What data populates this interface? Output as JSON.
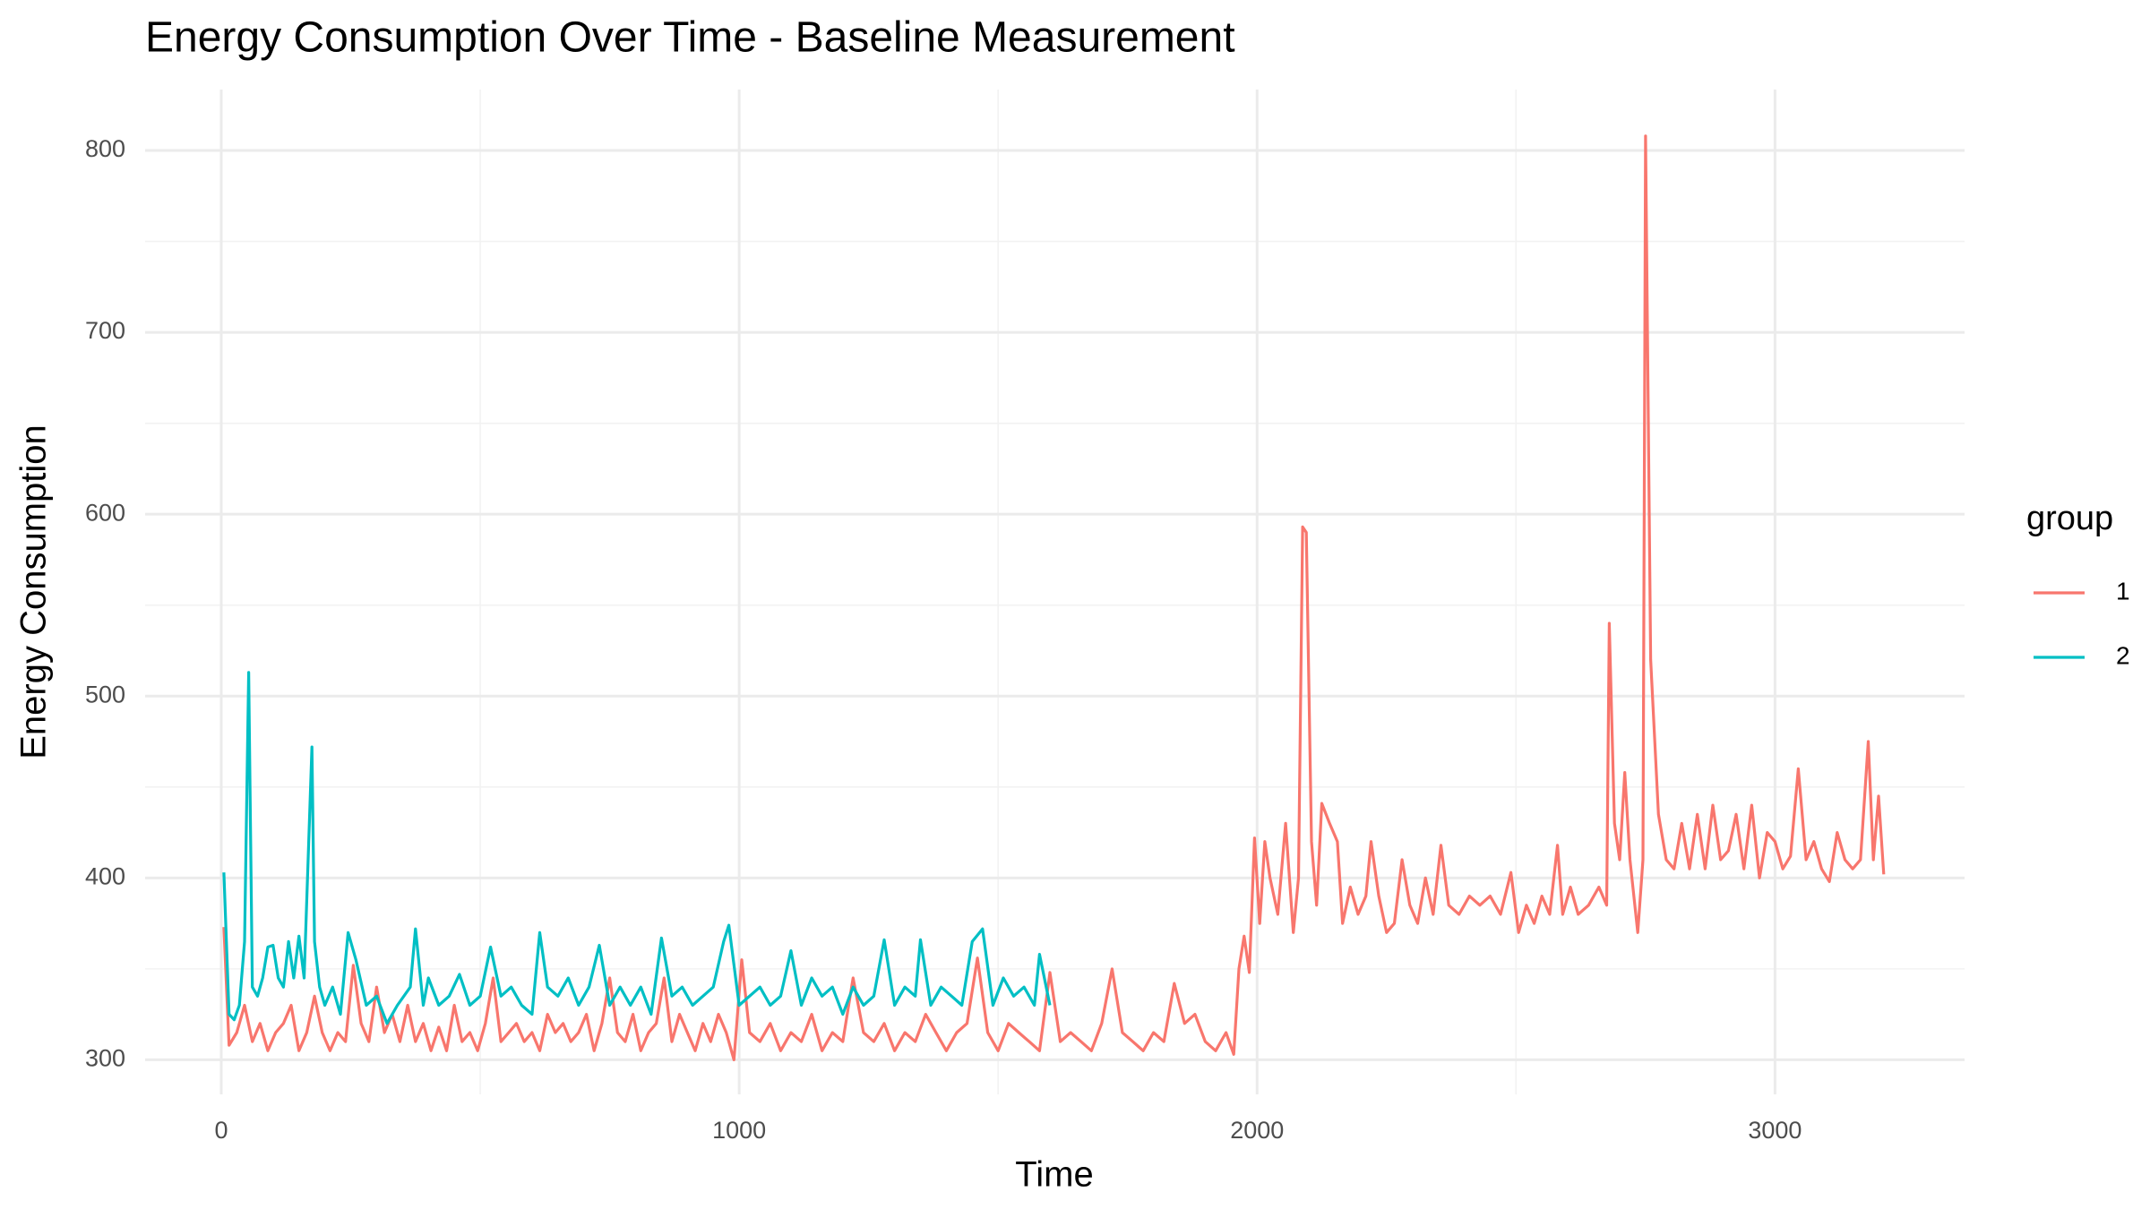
{
  "chart_data": {
    "type": "line",
    "title": "Energy Consumption Over Time - Baseline Measurement",
    "x_label": "Time",
    "y_label": "Energy Consumption",
    "legend_title": "group",
    "legend_position": "right",
    "xlim": [
      -147,
      3366
    ],
    "xticks": [
      0,
      1000,
      2000,
      3000
    ],
    "x_minor_ticks": [
      500,
      1500,
      2500
    ],
    "ylim": [
      281,
      833.5
    ],
    "yticks": [
      300,
      400,
      500,
      600,
      700,
      800
    ],
    "y_minor_ticks": [
      350,
      450,
      550,
      650,
      750
    ],
    "grid": true,
    "series": [
      {
        "name": "1",
        "color": "#F8766D",
        "x": [
          5,
          15,
          30,
          45,
          60,
          75,
          90,
          105,
          120,
          135,
          150,
          165,
          180,
          195,
          210,
          225,
          240,
          255,
          270,
          285,
          300,
          315,
          330,
          345,
          360,
          375,
          390,
          405,
          420,
          435,
          450,
          465,
          480,
          495,
          510,
          525,
          540,
          555,
          570,
          585,
          600,
          615,
          630,
          645,
          660,
          675,
          690,
          705,
          720,
          735,
          750,
          765,
          780,
          795,
          810,
          825,
          840,
          855,
          870,
          885,
          900,
          915,
          930,
          945,
          960,
          975,
          990,
          1005,
          1020,
          1040,
          1060,
          1080,
          1100,
          1120,
          1140,
          1160,
          1180,
          1200,
          1220,
          1240,
          1260,
          1280,
          1300,
          1320,
          1340,
          1360,
          1380,
          1400,
          1420,
          1440,
          1460,
          1480,
          1500,
          1520,
          1540,
          1560,
          1580,
          1600,
          1620,
          1640,
          1660,
          1680,
          1700,
          1720,
          1740,
          1760,
          1780,
          1800,
          1820,
          1840,
          1860,
          1880,
          1900,
          1920,
          1940,
          1955,
          1965,
          1975,
          1985,
          1995,
          2005,
          2015,
          2025,
          2040,
          2055,
          2070,
          2080,
          2088,
          2095,
          2105,
          2115,
          2125,
          2140,
          2155,
          2165,
          2180,
          2195,
          2210,
          2220,
          2235,
          2250,
          2265,
          2280,
          2295,
          2310,
          2325,
          2340,
          2355,
          2370,
          2390,
          2410,
          2430,
          2450,
          2470,
          2490,
          2505,
          2520,
          2535,
          2550,
          2565,
          2580,
          2590,
          2605,
          2620,
          2640,
          2660,
          2675,
          2680,
          2690,
          2700,
          2710,
          2720,
          2735,
          2745,
          2750,
          2760,
          2775,
          2790,
          2805,
          2820,
          2835,
          2850,
          2865,
          2880,
          2895,
          2910,
          2925,
          2940,
          2955,
          2970,
          2985,
          3000,
          3015,
          3030,
          3045,
          3060,
          3075,
          3090,
          3105,
          3120,
          3135,
          3150,
          3165,
          3180,
          3190,
          3200,
          3210
        ],
        "values": [
          373,
          308,
          315,
          330,
          310,
          320,
          305,
          315,
          320,
          330,
          305,
          315,
          335,
          315,
          305,
          315,
          310,
          352,
          320,
          310,
          340,
          315,
          325,
          310,
          330,
          310,
          320,
          305,
          318,
          305,
          330,
          310,
          315,
          305,
          320,
          345,
          310,
          315,
          320,
          310,
          315,
          305,
          325,
          315,
          320,
          310,
          315,
          325,
          305,
          320,
          345,
          315,
          310,
          325,
          305,
          315,
          320,
          345,
          310,
          325,
          315,
          305,
          320,
          310,
          325,
          315,
          300,
          355,
          315,
          310,
          320,
          305,
          315,
          310,
          325,
          305,
          315,
          310,
          345,
          315,
          310,
          320,
          305,
          315,
          310,
          325,
          315,
          305,
          315,
          320,
          356,
          315,
          305,
          320,
          315,
          310,
          305,
          348,
          310,
          315,
          310,
          305,
          320,
          350,
          315,
          310,
          305,
          315,
          310,
          342,
          320,
          325,
          310,
          305,
          315,
          303,
          350,
          368,
          348,
          422,
          375,
          420,
          400,
          380,
          430,
          370,
          400,
          593,
          590,
          420,
          385,
          441,
          430,
          420,
          375,
          395,
          380,
          390,
          420,
          390,
          370,
          375,
          410,
          385,
          375,
          400,
          380,
          418,
          385,
          380,
          390,
          385,
          390,
          380,
          403,
          370,
          385,
          375,
          390,
          380,
          418,
          380,
          395,
          380,
          385,
          395,
          385,
          540,
          430,
          410,
          458,
          410,
          370,
          410,
          808,
          520,
          435,
          410,
          405,
          430,
          405,
          435,
          405,
          440,
          410,
          415,
          435,
          405,
          440,
          400,
          425,
          420,
          405,
          412,
          460,
          410,
          420,
          405,
          398,
          425,
          410,
          405,
          410,
          475,
          410,
          445,
          402
        ]
      },
      {
        "name": "2",
        "color": "#00BFC4",
        "x": [
          5,
          15,
          25,
          35,
          45,
          53,
          60,
          70,
          80,
          90,
          100,
          110,
          120,
          130,
          140,
          150,
          160,
          175,
          180,
          190,
          200,
          215,
          230,
          245,
          260,
          280,
          300,
          320,
          340,
          365,
          375,
          390,
          400,
          420,
          440,
          460,
          480,
          500,
          520,
          540,
          560,
          580,
          600,
          615,
          630,
          650,
          670,
          690,
          710,
          730,
          750,
          770,
          790,
          810,
          830,
          850,
          870,
          890,
          910,
          930,
          950,
          970,
          980,
          1000,
          1020,
          1040,
          1060,
          1080,
          1100,
          1120,
          1140,
          1160,
          1180,
          1200,
          1220,
          1240,
          1260,
          1280,
          1300,
          1320,
          1340,
          1350,
          1370,
          1390,
          1410,
          1430,
          1450,
          1470,
          1490,
          1510,
          1530,
          1550,
          1570,
          1580,
          1600
        ],
        "values": [
          403,
          325,
          322,
          330,
          365,
          513,
          340,
          335,
          345,
          362,
          363,
          345,
          340,
          365,
          345,
          368,
          345,
          472,
          365,
          340,
          330,
          340,
          325,
          370,
          355,
          330,
          335,
          320,
          330,
          340,
          372,
          330,
          345,
          330,
          335,
          347,
          330,
          335,
          362,
          335,
          340,
          330,
          325,
          370,
          340,
          335,
          345,
          330,
          340,
          363,
          330,
          340,
          330,
          340,
          325,
          367,
          335,
          340,
          330,
          335,
          340,
          365,
          374,
          330,
          335,
          340,
          330,
          335,
          360,
          330,
          345,
          335,
          340,
          325,
          340,
          330,
          335,
          366,
          330,
          340,
          335,
          366,
          330,
          340,
          335,
          330,
          365,
          372,
          330,
          345,
          335,
          340,
          330,
          358,
          330
        ]
      }
    ]
  }
}
